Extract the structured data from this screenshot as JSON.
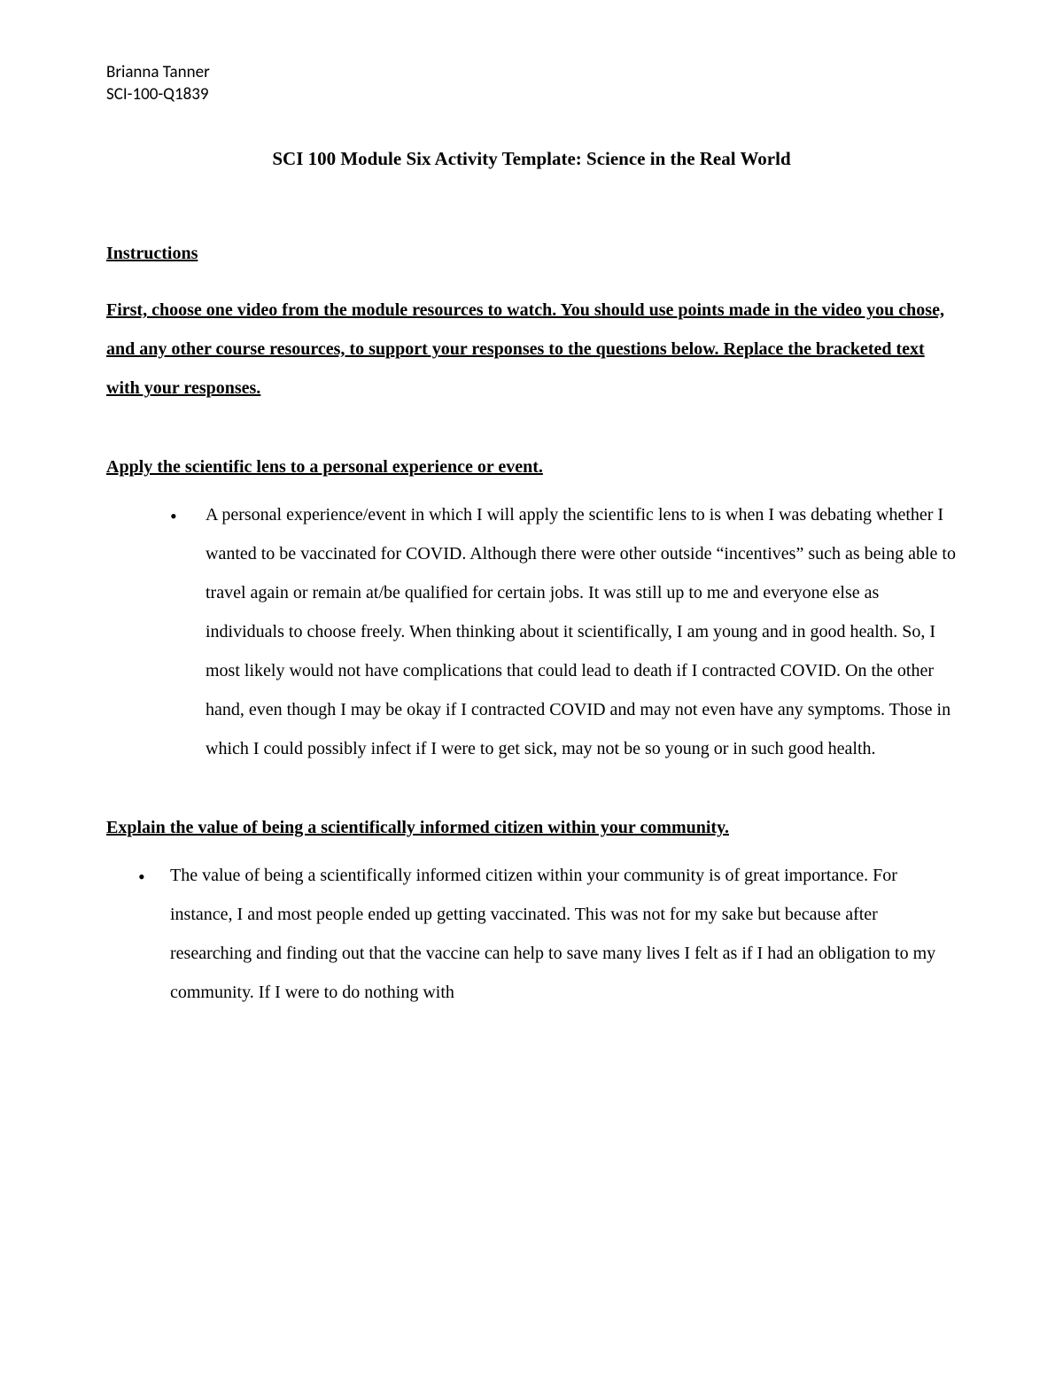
{
  "header": {
    "student_name": "Brianna Tanner",
    "course_code": "SCI-100-Q1839"
  },
  "title": "SCI 100 Module Six Activity Template: Science in the Real World",
  "instructions": {
    "heading": "Instructions",
    "body": "First, choose one video from the module resources to watch. You should use points made in the video you chose, and any other course resources, to support your responses to the questions below. Replace the bracketed text with your responses."
  },
  "sections": [
    {
      "prompt": "Apply the scientific lens to a personal experience or event.",
      "bullet": "A personal experience/event in which I will apply the scientific lens to is when I was debating whether I wanted to be vaccinated for COVID. Although there were other outside “incentives” such as being able to travel again or remain at/be qualified for certain jobs. It was still up to me and everyone else as individuals to choose freely. When thinking about it scientifically, I am young and in good health. So, I most likely would not have complications that could lead to death if I contracted COVID. On the other hand, even though I may be okay if I contracted COVID and may not even have any symptoms. Those in which I could possibly infect if I were to get sick, may not be so young or in such good health."
    },
    {
      "prompt": "Explain the value of being a scientifically informed citizen within your community.",
      "bullet": "The value of being a scientifically informed citizen within your community is of great importance. For instance, I and most people ended up getting vaccinated. This was not for my sake but because after researching and finding out that the vaccine can help to save many lives I felt as if I had an obligation to my community. If I were to do nothing with"
    }
  ],
  "colors": {
    "text": "#000000",
    "background": "#ffffff"
  },
  "fonts": {
    "header_family": "Calibri",
    "body_family": "Times New Roman",
    "title_size_pt": 16,
    "body_size_pt": 15,
    "header_size_pt": 14
  }
}
